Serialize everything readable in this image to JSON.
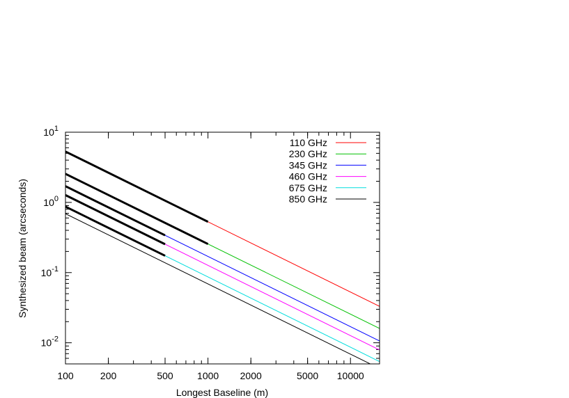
{
  "chart_data": {
    "type": "line",
    "title": "",
    "xlabel": "Longest Baseline (m)",
    "ylabel": "Synthesized beam (arcseconds)",
    "xscale": "log",
    "yscale": "log",
    "xlim": [
      100,
      16000
    ],
    "ylim": [
      0.005,
      10
    ],
    "x_ticks": [
      {
        "value": 100,
        "label": "100"
      },
      {
        "value": 200,
        "label": "200"
      },
      {
        "value": 500,
        "label": "500"
      },
      {
        "value": 1000,
        "label": "1000"
      },
      {
        "value": 2000,
        "label": "2000"
      },
      {
        "value": 5000,
        "label": "5000"
      },
      {
        "value": 10000,
        "label": "10000"
      }
    ],
    "y_ticks": [
      {
        "value": 0.01,
        "base": "10",
        "exp": "-2"
      },
      {
        "value": 0.1,
        "base": "10",
        "exp": "-1"
      },
      {
        "value": 1,
        "base": "10",
        "exp": "0"
      },
      {
        "value": 10,
        "base": "10",
        "exp": "1"
      }
    ],
    "grid": false,
    "legend_position": "top-right",
    "series": [
      {
        "name": "110 GHz",
        "color": "#ff0000",
        "bold_until": 1000,
        "x": [
          100,
          16000
        ],
        "y": [
          5.3,
          0.033
        ]
      },
      {
        "name": "230 GHz",
        "color": "#00c000",
        "bold_until": 1000,
        "x": [
          100,
          16000
        ],
        "y": [
          2.55,
          0.016
        ]
      },
      {
        "name": "345 GHz",
        "color": "#0000ff",
        "bold_until": 500,
        "x": [
          100,
          16000
        ],
        "y": [
          1.7,
          0.0106
        ]
      },
      {
        "name": "460 GHz",
        "color": "#ff00ff",
        "bold_until": 500,
        "x": [
          100,
          16000
        ],
        "y": [
          1.27,
          0.0079
        ]
      },
      {
        "name": "675 GHz",
        "color": "#00dddd",
        "bold_until": 500,
        "x": [
          100,
          16000
        ],
        "y": [
          0.87,
          0.0054
        ]
      },
      {
        "name": "850 GHz",
        "color": "#000000",
        "bold_until": null,
        "x": [
          100,
          16000
        ],
        "y": [
          0.69,
          0.0043
        ]
      }
    ]
  }
}
